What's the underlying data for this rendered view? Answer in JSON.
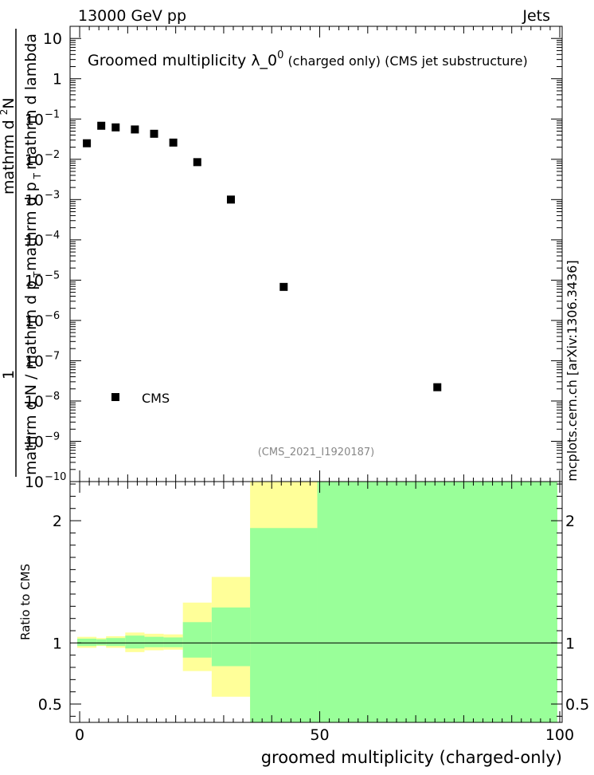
{
  "header": {
    "left": "13000 GeV pp",
    "right": "Jets"
  },
  "side_label": "mcplots.cern.ch [arXiv:1306.3436]",
  "chart_data": [
    {
      "type": "scatter",
      "title_main": "Groomed multiplicity",
      "title_symbol": "λ_0",
      "title_sup": "0",
      "title_suffix": "(charged only) (CMS jet substructure)",
      "analysis_id": "(CMS_2021_I1920187)",
      "ylabel_parts": [
        "1",
        "mathrm d N / mathrm d p",
        "T",
        "mathrm d p",
        "T",
        "mathrm d lambda",
        "mathrm d",
        "2",
        "N"
      ],
      "yscale": "log",
      "ylim": [
        1e-10,
        20
      ],
      "y_ticks": [
        {
          "value": 10,
          "label": "10"
        },
        {
          "value": 1,
          "label": "1"
        },
        {
          "value": 0.1,
          "base": "10",
          "exp": "−1"
        },
        {
          "value": 0.01,
          "base": "10",
          "exp": "−2"
        },
        {
          "value": 0.001,
          "base": "10",
          "exp": "−3"
        },
        {
          "value": 0.0001,
          "base": "10",
          "exp": "−4"
        },
        {
          "value": 1e-05,
          "base": "10",
          "exp": "−5"
        },
        {
          "value": 1e-06,
          "base": "10",
          "exp": "−6"
        },
        {
          "value": 1e-07,
          "base": "10",
          "exp": "−7"
        },
        {
          "value": 1e-08,
          "base": "10",
          "exp": "−8"
        },
        {
          "value": 1e-09,
          "base": "10",
          "exp": "−9"
        },
        {
          "value": 1e-10,
          "base": "10",
          "exp": "−10"
        }
      ],
      "xlim": [
        -2,
        100.5
      ],
      "legend": {
        "position": "bottom-left",
        "entries": [
          {
            "name": "CMS",
            "marker": "square",
            "color": "#000000"
          }
        ]
      },
      "series": [
        {
          "name": "CMS",
          "points": [
            {
              "x": 1.5,
              "y": 0.025
            },
            {
              "x": 4.5,
              "y": 0.068
            },
            {
              "x": 7.5,
              "y": 0.062
            },
            {
              "x": 11.5,
              "y": 0.055
            },
            {
              "x": 15.5,
              "y": 0.043
            },
            {
              "x": 19.5,
              "y": 0.026
            },
            {
              "x": 24.5,
              "y": 0.0085
            },
            {
              "x": 31.5,
              "y": 0.001
            },
            {
              "x": 42.5,
              "y": 6.8e-06
            },
            {
              "x": 74.5,
              "y": 2.2e-08
            }
          ]
        }
      ]
    },
    {
      "type": "area",
      "ylabel": "Ratio to CMS",
      "xlabel": "groomed multiplicity (charged-only)",
      "xlim": [
        -2,
        100.5
      ],
      "ylim": [
        0.35,
        2.32
      ],
      "x_ticks": [
        0,
        50,
        100
      ],
      "y_ticks": [
        0.5,
        1,
        2
      ],
      "reference_line": 1,
      "colors": {
        "outer_band": "#ffff99",
        "inner_band": "#99ff99"
      },
      "bins": [
        {
          "x0": -0.5,
          "x1": 3.5,
          "outer": [
            0.96,
            1.05
          ],
          "inner": [
            0.975,
            1.035
          ]
        },
        {
          "x0": 3.5,
          "x1": 5.5,
          "outer": [
            0.975,
            1.04
          ],
          "inner": [
            0.98,
            1.03
          ]
        },
        {
          "x0": 5.5,
          "x1": 9.5,
          "outer": [
            0.96,
            1.055
          ],
          "inner": [
            0.975,
            1.04
          ]
        },
        {
          "x0": 9.5,
          "x1": 13.5,
          "outer": [
            0.925,
            1.085
          ],
          "inner": [
            0.955,
            1.06
          ]
        },
        {
          "x0": 13.5,
          "x1": 17.5,
          "outer": [
            0.94,
            1.075
          ],
          "inner": [
            0.965,
            1.05
          ]
        },
        {
          "x0": 17.5,
          "x1": 21.5,
          "outer": [
            0.945,
            1.07
          ],
          "inner": [
            0.965,
            1.045
          ]
        },
        {
          "x0": 21.5,
          "x1": 27.5,
          "outer": [
            0.77,
            1.33
          ],
          "inner": [
            0.88,
            1.17
          ]
        },
        {
          "x0": 27.5,
          "x1": 35.5,
          "outer": [
            0.56,
            1.54
          ],
          "inner": [
            0.81,
            1.29
          ]
        },
        {
          "x0": 35.5,
          "x1": 49.5,
          "outer": [
            0.35,
            2.32
          ],
          "inner": [
            0.35,
            1.94
          ]
        },
        {
          "x0": 49.5,
          "x1": 99.5,
          "outer": [
            0.35,
            2.32
          ],
          "inner": [
            0.35,
            2.32
          ]
        }
      ]
    }
  ]
}
